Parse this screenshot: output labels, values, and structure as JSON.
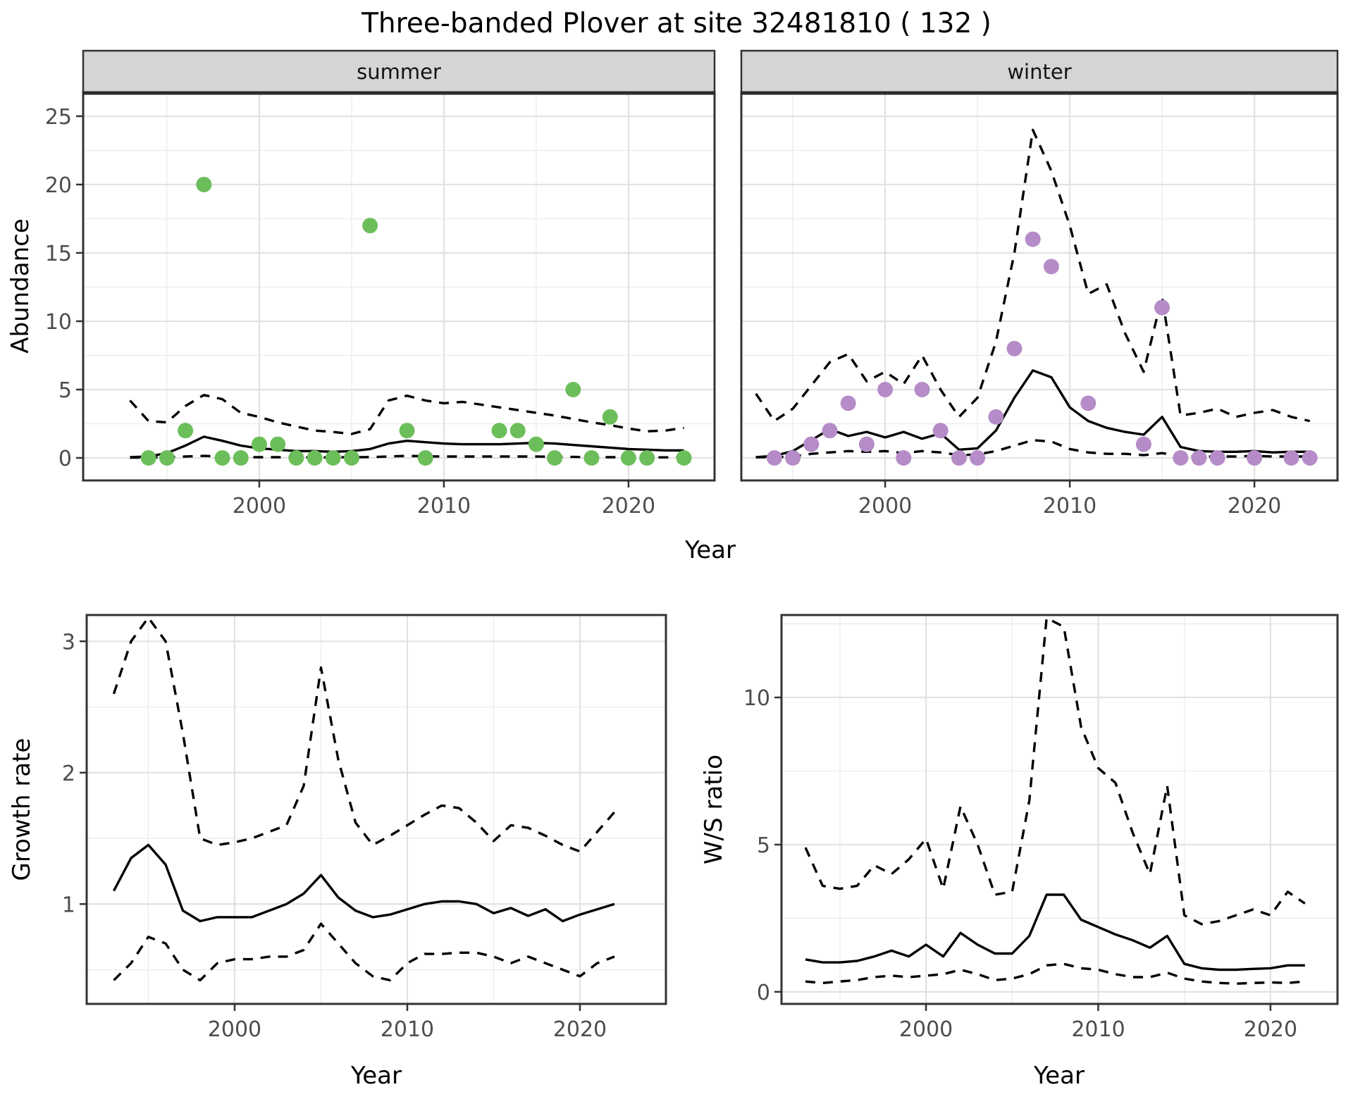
{
  "title": "Three-banded Plover at site 32481810 ( 132 )",
  "colors": {
    "summer_point": "#6cbe5a",
    "winter_point": "#b58cc8",
    "line": "#000000",
    "grid_major": "#e2e2e2",
    "grid_minor": "#efefef",
    "panel_border": "#333333",
    "strip_fill": "#d5d5d5",
    "tick_label": "#4d4d4d",
    "background": "#ffffff"
  },
  "chart_data": [
    {
      "panel_id": "summer",
      "type": "line+scatter",
      "facet": "summer",
      "xlabel": "Year",
      "ylabel": "Abundance",
      "xlim": [
        1990.46,
        2024.66
      ],
      "ylim": [
        -1.65,
        26.75
      ],
      "x_ticks": [
        2000,
        2010,
        2020
      ],
      "x_minor": [
        1995,
        2005,
        2015
      ],
      "y_ticks": [
        0,
        5,
        10,
        15,
        20,
        25
      ],
      "y_minor": [
        2.5,
        7.5,
        12.5,
        17.5,
        22.5
      ],
      "points": {
        "years": [
          1994,
          1995,
          1996,
          1997,
          1998,
          1999,
          2000,
          2001,
          2002,
          2003,
          2004,
          2005,
          2006,
          2008,
          2009,
          2013,
          2014,
          2015,
          2016,
          2017,
          2018,
          2019,
          2020,
          2021,
          2023
        ],
        "values": [
          0,
          0,
          2,
          20,
          0,
          0,
          1,
          1,
          0,
          0,
          0,
          0,
          17,
          2,
          0,
          2,
          2,
          1,
          0,
          5,
          0,
          3,
          0,
          0,
          0
        ]
      },
      "lines": {
        "years": [
          1993,
          1994,
          1995,
          1996,
          1997,
          1998,
          1999,
          2000,
          2001,
          2002,
          2003,
          2004,
          2005,
          2006,
          2007,
          2008,
          2009,
          2010,
          2011,
          2012,
          2013,
          2014,
          2015,
          2016,
          2017,
          2018,
          2019,
          2020,
          2021,
          2022,
          2023
        ],
        "estimate": [
          0.05,
          0.1,
          0.35,
          0.9,
          1.55,
          1.25,
          0.9,
          0.7,
          0.6,
          0.5,
          0.5,
          0.45,
          0.5,
          0.65,
          1.05,
          1.25,
          1.15,
          1.05,
          1.0,
          1.0,
          1.0,
          1.05,
          1.1,
          1.05,
          0.95,
          0.85,
          0.75,
          0.65,
          0.6,
          0.55,
          0.55
        ],
        "upper": [
          4.2,
          2.7,
          2.6,
          3.8,
          4.6,
          4.3,
          3.3,
          3.0,
          2.6,
          2.3,
          2.0,
          1.9,
          1.75,
          2.1,
          4.2,
          4.55,
          4.2,
          4.0,
          4.1,
          3.9,
          3.7,
          3.5,
          3.3,
          3.1,
          2.85,
          2.6,
          2.4,
          2.15,
          1.95,
          2.0,
          2.2
        ],
        "lower": [
          0.02,
          0.02,
          0.05,
          0.1,
          0.15,
          0.1,
          0.06,
          0.05,
          0.05,
          0.04,
          0.04,
          0.04,
          0.05,
          0.06,
          0.1,
          0.15,
          0.12,
          0.1,
          0.1,
          0.1,
          0.1,
          0.1,
          0.1,
          0.08,
          0.07,
          0.06,
          0.05,
          0.05,
          0.04,
          0.04,
          0.05
        ]
      }
    },
    {
      "panel_id": "winter",
      "type": "line+scatter",
      "facet": "winter",
      "xlabel": "Year",
      "ylabel": "Abundance",
      "xlim": [
        1992.21,
        2024.5
      ],
      "ylim": [
        -1.65,
        26.75
      ],
      "x_ticks": [
        2000,
        2010,
        2020
      ],
      "x_minor": [
        1995,
        2005,
        2015
      ],
      "y_ticks": [
        0,
        5,
        10,
        15,
        20,
        25
      ],
      "y_minor": [
        2.5,
        7.5,
        12.5,
        17.5,
        22.5
      ],
      "points": {
        "years": [
          1994,
          1995,
          1996,
          1997,
          1998,
          1999,
          2000,
          2001,
          2002,
          2003,
          2004,
          2005,
          2006,
          2007,
          2008,
          2009,
          2011,
          2014,
          2015,
          2016,
          2017,
          2018,
          2020,
          2022,
          2023
        ],
        "values": [
          0,
          0,
          1,
          2,
          4,
          1,
          5,
          0,
          5,
          2,
          0,
          0,
          3,
          8,
          16,
          14,
          4,
          1,
          11,
          0,
          0,
          0,
          0,
          0,
          0
        ]
      },
      "lines": {
        "years": [
          1993,
          1994,
          1995,
          1996,
          1997,
          1998,
          1999,
          2000,
          2001,
          2002,
          2003,
          2004,
          2005,
          2006,
          2007,
          2008,
          2009,
          2010,
          2011,
          2012,
          2013,
          2014,
          2015,
          2016,
          2017,
          2018,
          2019,
          2020,
          2021,
          2022,
          2023
        ],
        "estimate": [
          0.05,
          0.15,
          0.5,
          1.3,
          2.1,
          1.6,
          1.9,
          1.5,
          1.9,
          1.4,
          1.8,
          0.6,
          0.7,
          2.0,
          4.4,
          6.4,
          5.9,
          3.7,
          2.7,
          2.2,
          1.9,
          1.7,
          3.0,
          0.8,
          0.5,
          0.45,
          0.45,
          0.5,
          0.4,
          0.45,
          0.45
        ],
        "upper": [
          4.7,
          2.7,
          3.6,
          5.3,
          7.0,
          7.6,
          5.6,
          6.3,
          5.4,
          7.5,
          5.0,
          3.0,
          4.4,
          8.5,
          15.0,
          24.0,
          21.0,
          17.0,
          12.0,
          12.7,
          9.1,
          6.3,
          11.8,
          3.1,
          3.3,
          3.6,
          3.0,
          3.3,
          3.5,
          3.0,
          2.7
        ],
        "lower": [
          0.05,
          0.05,
          0.1,
          0.3,
          0.4,
          0.5,
          0.45,
          0.5,
          0.35,
          0.5,
          0.4,
          0.2,
          0.25,
          0.5,
          0.9,
          1.3,
          1.2,
          0.65,
          0.4,
          0.3,
          0.3,
          0.2,
          0.35,
          0.15,
          0.1,
          0.1,
          0.1,
          0.15,
          0.1,
          0.1,
          0.1
        ]
      }
    },
    {
      "panel_id": "growth",
      "type": "line",
      "facet": "",
      "xlabel": "Year",
      "ylabel": "Growth rate",
      "xlim": [
        1991.43,
        2024.98
      ],
      "ylim": [
        0.24,
        3.2
      ],
      "x_ticks": [
        2000,
        2010,
        2020
      ],
      "x_minor": [
        1995,
        2005,
        2015
      ],
      "y_ticks": [
        1,
        2,
        3
      ],
      "y_minor": [
        0.5,
        1.5,
        2.5
      ],
      "points": {
        "years": [],
        "values": []
      },
      "lines": {
        "years": [
          1993,
          1994,
          1995,
          1996,
          1997,
          1998,
          1999,
          2000,
          2001,
          2002,
          2003,
          2004,
          2005,
          2006,
          2007,
          2008,
          2009,
          2010,
          2011,
          2012,
          2013,
          2014,
          2015,
          2016,
          2017,
          2018,
          2019,
          2020,
          2021,
          2022
        ],
        "estimate": [
          1.1,
          1.35,
          1.45,
          1.3,
          0.95,
          0.87,
          0.9,
          0.9,
          0.9,
          0.95,
          1.0,
          1.08,
          1.22,
          1.05,
          0.95,
          0.9,
          0.92,
          0.96,
          1.0,
          1.02,
          1.02,
          1.0,
          0.93,
          0.97,
          0.91,
          0.96,
          0.87,
          0.92,
          0.96,
          1.0
        ],
        "upper": [
          2.6,
          3.0,
          3.18,
          3.0,
          2.3,
          1.5,
          1.45,
          1.47,
          1.5,
          1.55,
          1.6,
          1.9,
          2.8,
          2.1,
          1.62,
          1.45,
          1.52,
          1.6,
          1.68,
          1.75,
          1.73,
          1.62,
          1.48,
          1.6,
          1.58,
          1.52,
          1.45,
          1.4,
          1.55,
          1.7
        ],
        "lower": [
          0.42,
          0.55,
          0.75,
          0.7,
          0.5,
          0.42,
          0.55,
          0.58,
          0.58,
          0.6,
          0.6,
          0.65,
          0.85,
          0.7,
          0.55,
          0.45,
          0.42,
          0.55,
          0.62,
          0.62,
          0.63,
          0.63,
          0.6,
          0.55,
          0.6,
          0.55,
          0.5,
          0.45,
          0.55,
          0.6
        ]
      }
    },
    {
      "panel_id": "ws",
      "type": "line",
      "facet": "",
      "xlabel": "Year",
      "ylabel": "W/S ratio",
      "xlim": [
        1991.61,
        2023.89
      ],
      "ylim": [
        -0.41,
        12.8
      ],
      "x_ticks": [
        2000,
        2010,
        2020
      ],
      "x_minor": [
        1995,
        2005,
        2015
      ],
      "y_ticks": [
        0,
        5,
        10
      ],
      "y_minor": [
        2.5,
        7.5,
        12.5
      ],
      "points": {
        "years": [],
        "values": []
      },
      "lines": {
        "years": [
          1993,
          1994,
          1995,
          1996,
          1997,
          1998,
          1999,
          2000,
          2001,
          2002,
          2003,
          2004,
          2005,
          2006,
          2007,
          2008,
          2009,
          2010,
          2011,
          2012,
          2013,
          2014,
          2015,
          2016,
          2017,
          2018,
          2019,
          2020,
          2021,
          2022
        ],
        "estimate": [
          1.1,
          1.0,
          1.0,
          1.05,
          1.2,
          1.4,
          1.2,
          1.6,
          1.2,
          2.0,
          1.6,
          1.3,
          1.3,
          1.9,
          3.3,
          3.3,
          2.45,
          2.2,
          1.95,
          1.75,
          1.5,
          1.9,
          0.95,
          0.8,
          0.75,
          0.75,
          0.78,
          0.8,
          0.9,
          0.9
        ],
        "upper": [
          4.9,
          3.6,
          3.5,
          3.6,
          4.3,
          4.0,
          4.5,
          5.2,
          3.5,
          6.3,
          5.0,
          3.3,
          3.4,
          6.5,
          12.7,
          12.4,
          9.0,
          7.6,
          7.1,
          5.4,
          4.0,
          7.0,
          2.6,
          2.3,
          2.4,
          2.6,
          2.8,
          2.6,
          3.4,
          3.0
        ],
        "lower": [
          0.35,
          0.3,
          0.35,
          0.4,
          0.5,
          0.55,
          0.5,
          0.55,
          0.6,
          0.75,
          0.6,
          0.4,
          0.45,
          0.6,
          0.9,
          0.95,
          0.8,
          0.75,
          0.6,
          0.5,
          0.5,
          0.65,
          0.45,
          0.35,
          0.3,
          0.28,
          0.3,
          0.32,
          0.3,
          0.35
        ]
      }
    }
  ]
}
